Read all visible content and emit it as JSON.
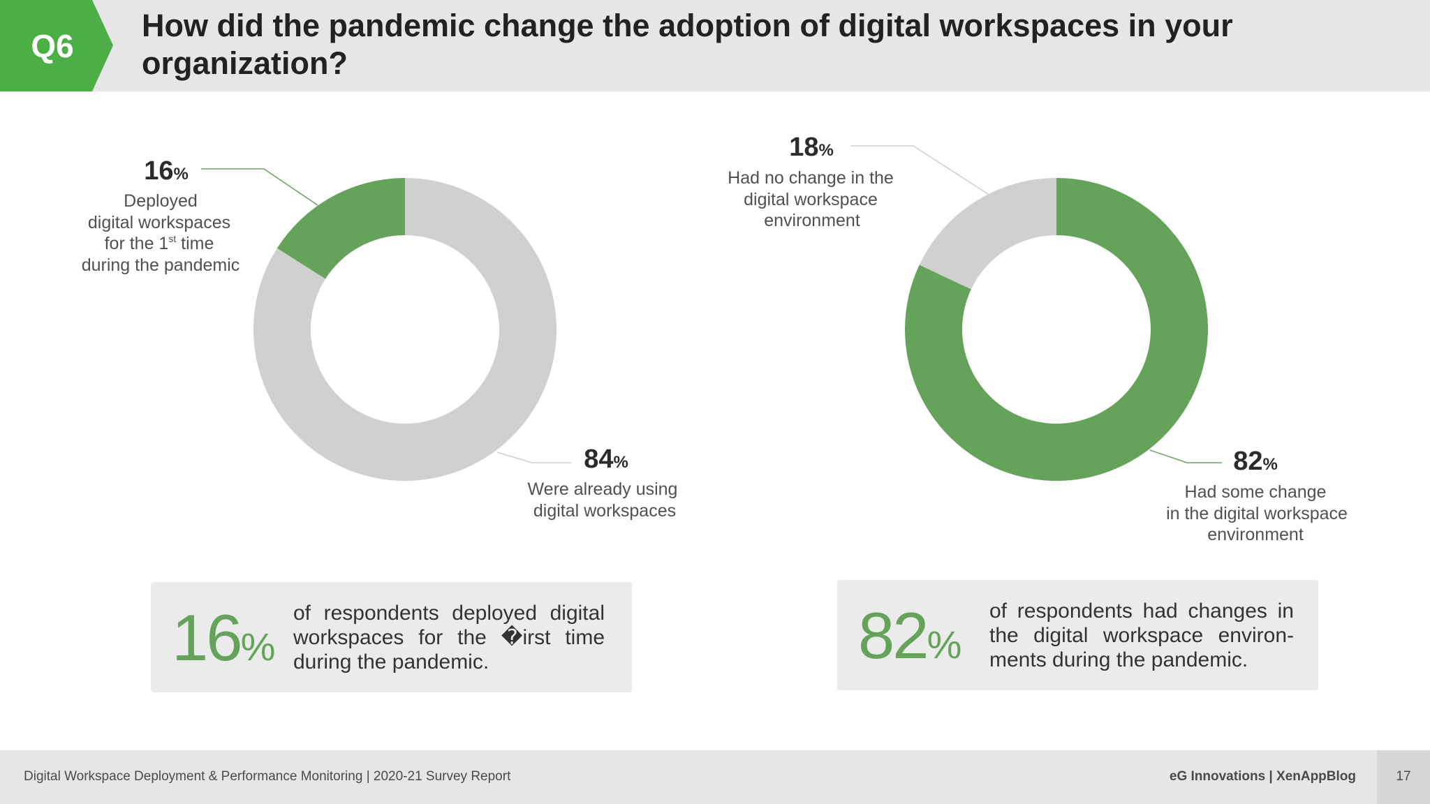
{
  "header": {
    "badge": "Q6",
    "question": "How did the pandemic change the adoption of digital workspaces in your organization?"
  },
  "colors": {
    "green": "#65a35a",
    "grey": "#d0d0d0",
    "badge": "#4caf45"
  },
  "chart_data": [
    {
      "type": "pie",
      "variant": "donut",
      "slices": [
        {
          "label": "Deployed digital workspaces for the 1st time during the pandemic",
          "value": 16,
          "color": "#65a35a"
        },
        {
          "label": "Were already using digital workspaces",
          "value": 84,
          "color": "#d0d0d0"
        }
      ]
    },
    {
      "type": "pie",
      "variant": "donut",
      "slices": [
        {
          "label": "Had no change in the digital workspace environment",
          "value": 18,
          "color": "#d0d0d0"
        },
        {
          "label": "Had some change in the digital workspace environment",
          "value": 82,
          "color": "#65a35a"
        }
      ]
    }
  ],
  "labels": {
    "c1_small": {
      "value": "16",
      "unit": "%",
      "lines": [
        "Deployed",
        "digital workspaces",
        "for the 1",
        "st",
        " time",
        "during the pandemic"
      ]
    },
    "c1_large": {
      "value": "84",
      "unit": "%",
      "lines": [
        "Were already using",
        "digital workspaces"
      ]
    },
    "c2_small": {
      "value": "18",
      "unit": "%",
      "lines": [
        "Had no change in the",
        "digital workspace",
        "environment"
      ]
    },
    "c2_large": {
      "value": "82",
      "unit": "%",
      "lines": [
        "Had some change",
        "in the digital workspace",
        "environment"
      ]
    }
  },
  "boxes": [
    {
      "value": "16",
      "unit": "%",
      "text": "of respondents deployed digital workspaces for the �irst time during the pandemic."
    },
    {
      "value": "82",
      "unit": "%",
      "text": "of respondents had changes in the digital workspace environ-ments during the pandemic."
    }
  ],
  "footer": {
    "report": "Digital Workspace Deployment & Performance Monitoring | 2020-21 Survey Report",
    "brand": "eG Innovations  |  XenAppBlog",
    "page": "17"
  }
}
